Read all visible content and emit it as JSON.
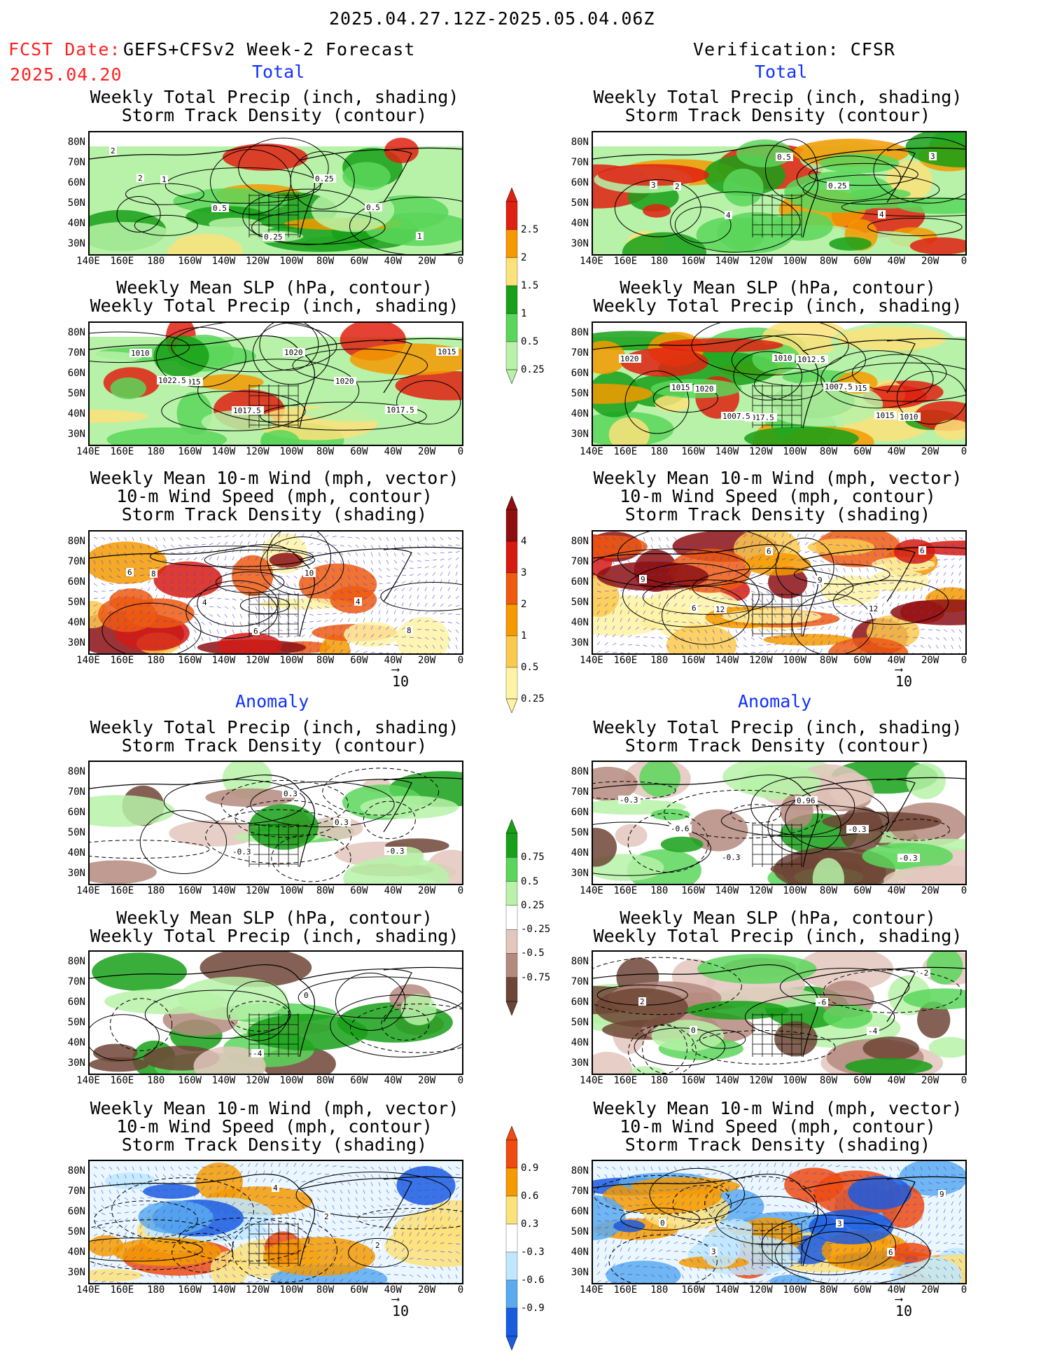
{
  "header": {
    "period": "2025.04.27.12Z-2025.05.04.06Z",
    "fcst_label": "FCST Date:",
    "fcst_model": "GEFS+CFSv2 Week-2 Forecast",
    "fcst_date": "2025.04.20",
    "verification": "Verification: CFSR"
  },
  "sections": {
    "total": "Total",
    "anomaly": "Anomaly"
  },
  "titles": {
    "precip_storm": [
      "Weekly Total Precip (inch, shading)",
      "Storm Track Density (contour)"
    ],
    "slp_precip": [
      "Weekly Mean SLP (hPa, contour)",
      "Weekly Total Precip (inch, shading)"
    ],
    "wind_storm": [
      "Weekly Mean 10-m Wind (mph, vector)",
      "10-m Wind Speed (mph, contour)",
      "Storm Track Density (shading)"
    ]
  },
  "axes": {
    "lat_ticks": [
      "80N",
      "70N",
      "60N",
      "50N",
      "40N",
      "30N"
    ],
    "lon_ticks": [
      "140E",
      "160E",
      "180",
      "160W",
      "140W",
      "120W",
      "100W",
      "80W",
      "60W",
      "40W",
      "20W",
      "0"
    ]
  },
  "wind_key": "10",
  "colorbars": {
    "precip_total": {
      "labels": [
        "2.5",
        "2",
        "1.5",
        "1",
        "0.5",
        "0.25"
      ],
      "colors": [
        "#e02010",
        "#f59a00",
        "#fde27a",
        "#17a017",
        "#5ad65a",
        "#b7f2a8"
      ]
    },
    "storm_total": {
      "labels": [
        "4",
        "3",
        "2",
        "1",
        "0.5",
        "0.25"
      ],
      "colors": [
        "#8e0f0f",
        "#d61a10",
        "#ef5a10",
        "#f59a00",
        "#fbc94d",
        "#fff3a6"
      ]
    },
    "precip_anom": {
      "labels": [
        "0.75",
        "0.5",
        "0.25",
        "-0.25",
        "-0.5",
        "-0.75"
      ],
      "colors": [
        "#17a017",
        "#5ad65a",
        "#b7f2a8",
        "#ffffff",
        "#e3c7bd",
        "#b58a7e",
        "#6e4536"
      ]
    },
    "storm_anom": {
      "labels": [
        "0.9",
        "0.6",
        "0.3",
        "-0.3",
        "-0.6",
        "-0.9"
      ],
      "colors": [
        "#ef4a10",
        "#f59a00",
        "#fde27a",
        "#ffffff",
        "#bfe8ff",
        "#5aaaf0",
        "#1a5ce0"
      ]
    }
  },
  "contour_labels": {
    "fp1": [
      "2",
      "1",
      "0.5",
      "0.25",
      "0.25",
      "0.5",
      "1",
      "2"
    ],
    "fp2": [
      "1010",
      "1015",
      "1017.5",
      "1020",
      "1020",
      "1017.5",
      "1015",
      "1022.5"
    ],
    "fp3": [
      "8",
      "4",
      "6",
      "10",
      "4",
      "8",
      "6"
    ],
    "vp1": [
      "2",
      "4",
      "0.5",
      "0.25",
      "4",
      "3",
      "3"
    ],
    "vp2": [
      "1020",
      "1017.5",
      "1012.5",
      "1015",
      "1010",
      "1020",
      "1015",
      "1007.5",
      "1010",
      "1007.5",
      "1015"
    ],
    "vp3": [
      "12",
      "6",
      "9",
      "12",
      "6",
      "9",
      "6"
    ],
    "fa1": [
      "-0.3",
      "0.3",
      "0.3",
      "-0.3"
    ],
    "fa2": [
      "-4",
      "0"
    ],
    "fa3": [
      "4",
      "2",
      "2"
    ],
    "va1": [
      "0.96",
      "-0.3",
      "-0.3",
      "-0.3",
      "-0.6",
      "-0.3"
    ],
    "va2": [
      "-6",
      "-4",
      "-2",
      "2",
      "0"
    ],
    "va3": [
      "3",
      "6",
      "9",
      "0",
      "3"
    ]
  }
}
